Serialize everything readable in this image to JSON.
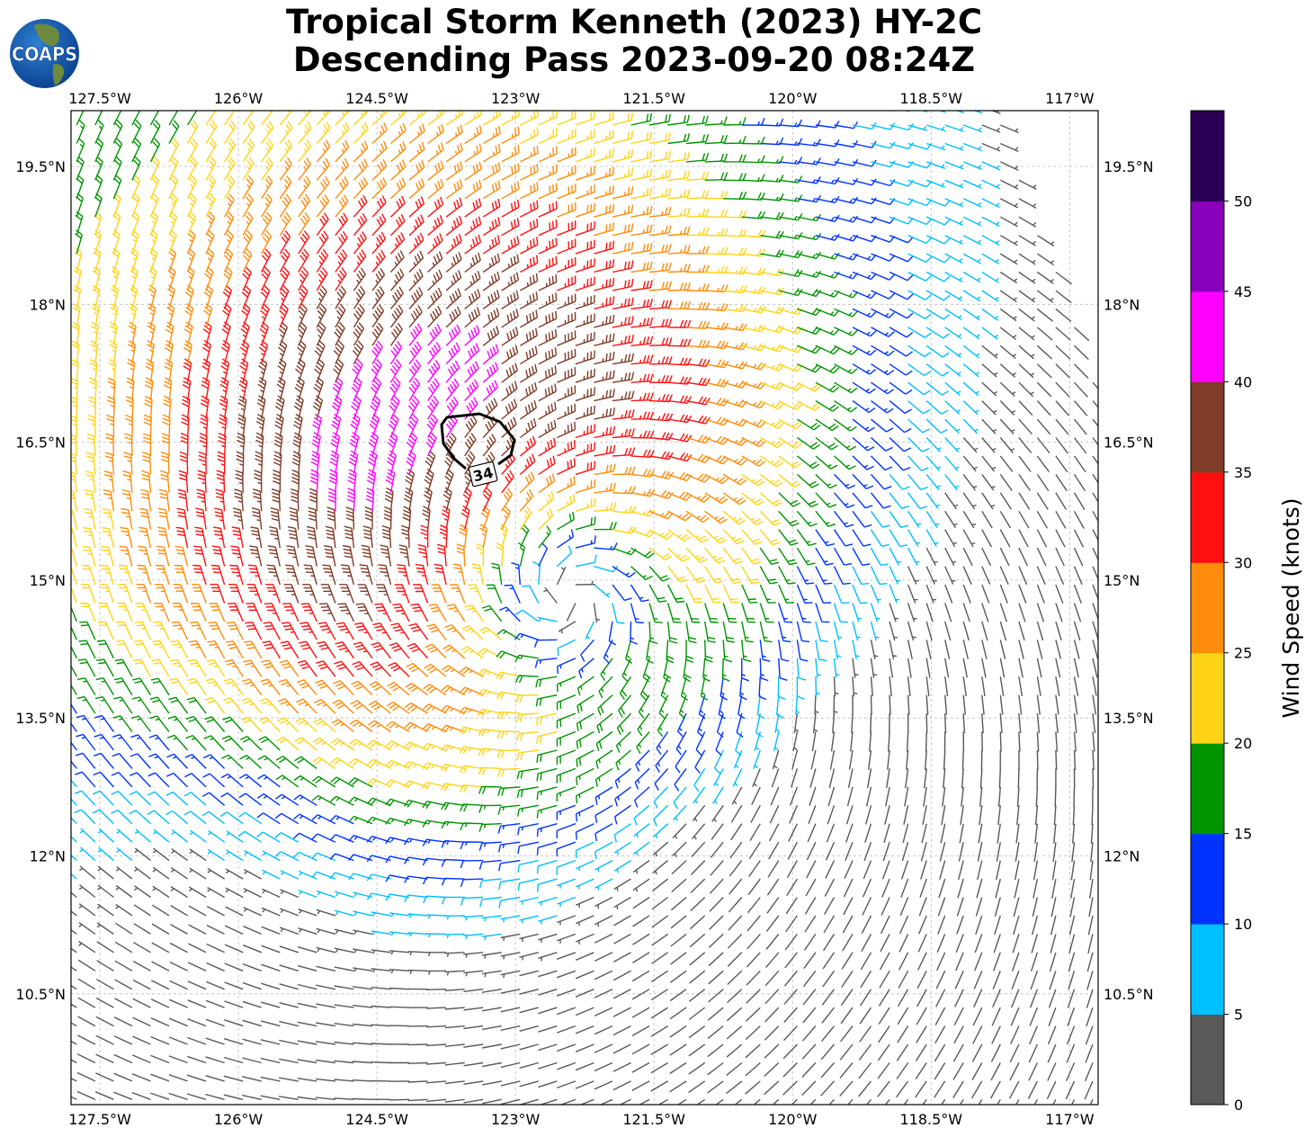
{
  "title": {
    "line1": "Tropical Storm Kenneth (2023) HY-2C",
    "line2": "Descending Pass 2023-09-20 08:24Z"
  },
  "logo": {
    "text": "COAPS"
  },
  "axes": {
    "lon_ticks": [
      {
        "value": -127.5,
        "label": "127.5°W"
      },
      {
        "value": -126,
        "label": "126°W"
      },
      {
        "value": -124.5,
        "label": "124.5°W"
      },
      {
        "value": -123,
        "label": "123°W"
      },
      {
        "value": -121.5,
        "label": "121.5°W"
      },
      {
        "value": -120,
        "label": "120°W"
      },
      {
        "value": -118.5,
        "label": "118.5°W"
      },
      {
        "value": -117,
        "label": "117°W"
      }
    ],
    "lat_ticks": [
      {
        "value": 19.5,
        "label": "19.5°N"
      },
      {
        "value": 18,
        "label": "18°N"
      },
      {
        "value": 16.5,
        "label": "16.5°N"
      },
      {
        "value": 15,
        "label": "15°N"
      },
      {
        "value": 13.5,
        "label": "13.5°N"
      },
      {
        "value": 12,
        "label": "12°N"
      },
      {
        "value": 10.5,
        "label": "10.5°N"
      }
    ],
    "lon_range": [
      -127.81,
      -116.7
    ],
    "lat_range": [
      9.29,
      20.1
    ]
  },
  "colorbar": {
    "label": "Wind Speed (knots)",
    "ticks": [
      "0",
      "5",
      "10",
      "15",
      "20",
      "25",
      "30",
      "35",
      "40",
      "45",
      "50"
    ],
    "bounds": [
      0,
      5,
      10,
      15,
      20,
      25,
      30,
      35,
      40,
      45,
      50,
      55
    ],
    "colors": [
      "#595959",
      "#00bfff",
      "#0033ff",
      "#009400",
      "#ffd416",
      "#ff8c0a",
      "#ff1010",
      "#7f3c28",
      "#ff00ff",
      "#8800bb",
      "#2a0055"
    ]
  },
  "contour": {
    "label": "34"
  },
  "wind_field": {
    "center_lon": -122.4,
    "center_lat": 14.8,
    "peak_speed_kt": 36,
    "grid_step_deg": 0.2
  }
}
